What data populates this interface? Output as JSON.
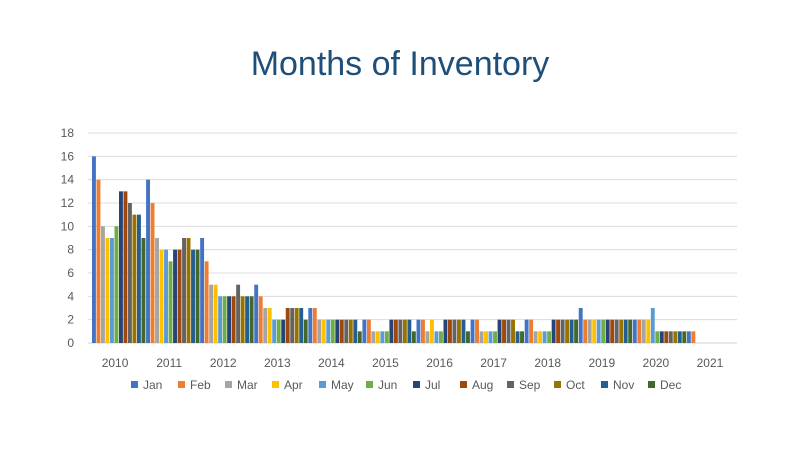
{
  "chart_data": {
    "type": "bar",
    "title": "Months of Inventory",
    "xlabel": "",
    "ylabel": "",
    "ylim": [
      0,
      18
    ],
    "yticks": [
      0,
      2,
      4,
      6,
      8,
      10,
      12,
      14,
      16,
      18
    ],
    "grid": true,
    "legend_position": "bottom",
    "categories": [
      "2010",
      "2011",
      "2012",
      "2013",
      "2014",
      "2015",
      "2016",
      "2017",
      "2018",
      "2019",
      "2020",
      "2021"
    ],
    "series": [
      {
        "name": "Jan",
        "color": "#4472c4",
        "values": [
          16,
          14,
          9,
          5,
          3,
          2,
          2,
          2,
          2,
          3,
          2,
          1
        ]
      },
      {
        "name": "Feb",
        "color": "#ed7d31",
        "values": [
          14,
          12,
          7,
          4,
          3,
          2,
          2,
          2,
          2,
          2,
          2,
          1
        ]
      },
      {
        "name": "Mar",
        "color": "#a5a5a5",
        "values": [
          10,
          9,
          5,
          3,
          2,
          1,
          1,
          1,
          1,
          2,
          2,
          null
        ]
      },
      {
        "name": "Apr",
        "color": "#ffc000",
        "values": [
          9,
          8,
          5,
          3,
          2,
          1,
          2,
          1,
          1,
          2,
          2,
          null
        ]
      },
      {
        "name": "May",
        "color": "#5b9bd5",
        "values": [
          9,
          8,
          4,
          2,
          2,
          1,
          1,
          1,
          1,
          2,
          3,
          null
        ]
      },
      {
        "name": "Jun",
        "color": "#70ad47",
        "values": [
          10,
          7,
          4,
          2,
          2,
          1,
          1,
          1,
          1,
          2,
          1,
          null
        ]
      },
      {
        "name": "Jul",
        "color": "#264478",
        "values": [
          13,
          8,
          4,
          2,
          2,
          2,
          2,
          2,
          2,
          2,
          1,
          null
        ]
      },
      {
        "name": "Aug",
        "color": "#9e480e",
        "values": [
          13,
          8,
          4,
          3,
          2,
          2,
          2,
          2,
          2,
          2,
          1,
          null
        ]
      },
      {
        "name": "Sep",
        "color": "#636363",
        "values": [
          12,
          9,
          5,
          3,
          2,
          2,
          2,
          2,
          2,
          2,
          1,
          null
        ]
      },
      {
        "name": "Oct",
        "color": "#997300",
        "values": [
          11,
          9,
          4,
          3,
          2,
          2,
          2,
          2,
          2,
          2,
          1,
          null
        ]
      },
      {
        "name": "Nov",
        "color": "#255e91",
        "values": [
          11,
          8,
          4,
          3,
          2,
          2,
          2,
          1,
          2,
          2,
          1,
          null
        ]
      },
      {
        "name": "Dec",
        "color": "#43682b",
        "values": [
          9,
          8,
          4,
          2,
          1,
          1,
          1,
          1,
          2,
          2,
          1,
          null
        ]
      }
    ]
  }
}
